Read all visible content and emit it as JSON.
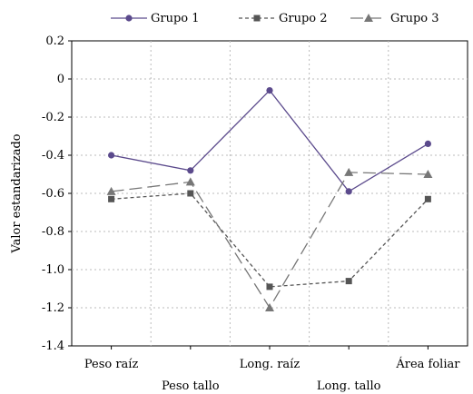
{
  "chart_data": {
    "type": "line",
    "ylabel": "Valor estandarizado",
    "xlabel": "",
    "categories": [
      "Peso raíz",
      "Peso tallo",
      "Long. raíz",
      "Long. tallo",
      "Área foliar"
    ],
    "ylim": [
      -1.4,
      0.2
    ],
    "yticks": [
      0.2,
      0,
      -0.2,
      -0.4,
      -0.6,
      -0.8,
      -1.0,
      -1.2,
      -1.4
    ],
    "ytick_labels": [
      "0.2",
      "0",
      "-0.2",
      "-0.4",
      "-0.6",
      "-0.8",
      "-1.0",
      "-1.2",
      "-1.4"
    ],
    "grid": true,
    "legend_position": "top",
    "series": [
      {
        "name": "Grupo 1",
        "values": [
          -0.4,
          -0.48,
          -0.06,
          -0.59,
          -0.34
        ],
        "color": "#5b4a8c",
        "marker": "circle",
        "dash": "solid"
      },
      {
        "name": "Grupo 2",
        "values": [
          -0.63,
          -0.6,
          -1.09,
          -1.06,
          -0.63
        ],
        "color": "#555555",
        "marker": "square",
        "dash": "short-dash"
      },
      {
        "name": "Grupo 3",
        "values": [
          -0.59,
          -0.54,
          -1.2,
          -0.49,
          -0.5
        ],
        "color": "#777777",
        "marker": "triangle",
        "dash": "long-dash"
      }
    ]
  }
}
